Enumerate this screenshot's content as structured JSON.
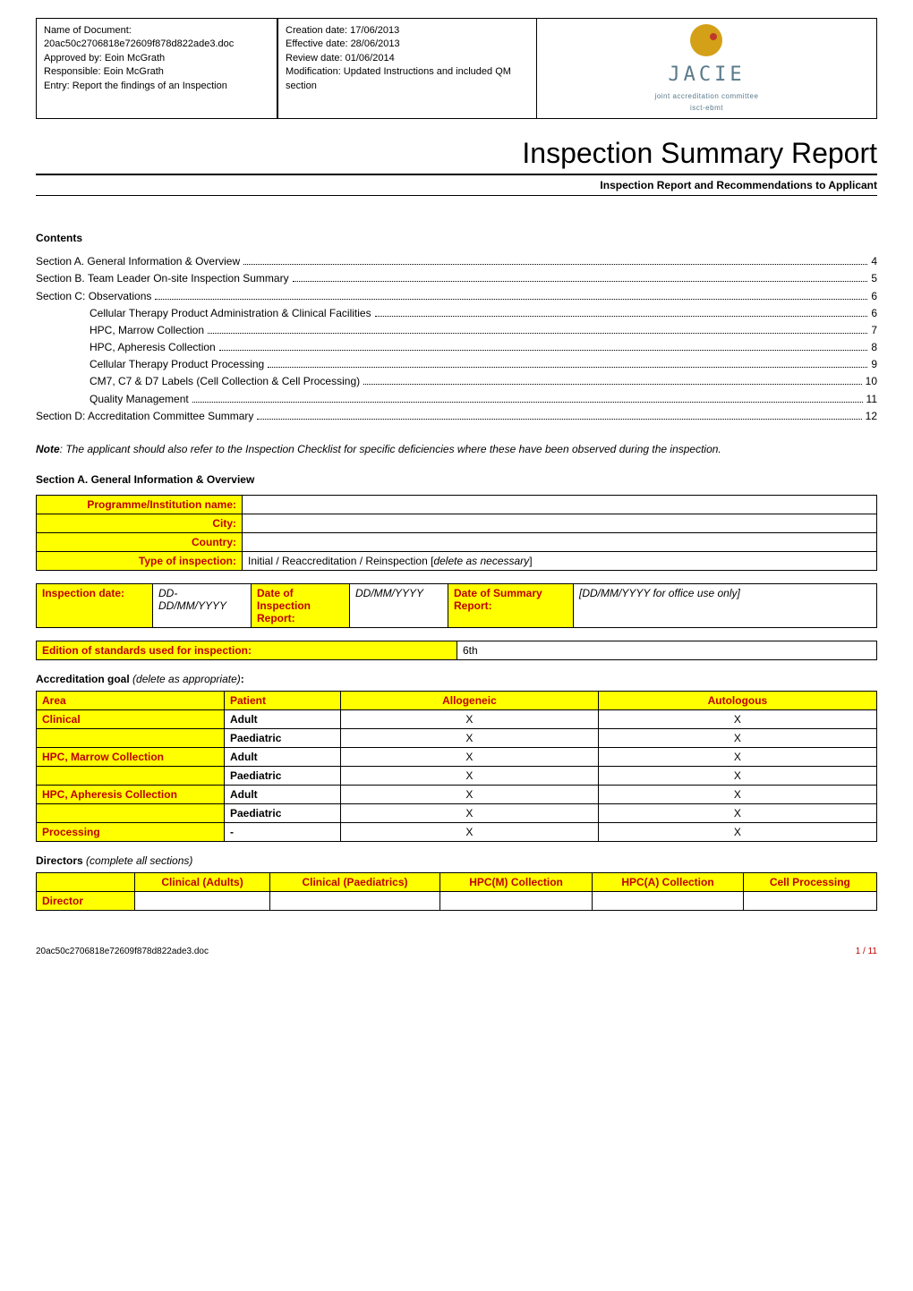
{
  "header": {
    "box1": {
      "l1": "Name of Document:",
      "l2": "20ac50c2706818e72609f878d822ade3.doc",
      "l3": "Approved by: Eoin McGrath",
      "l4": "Responsible: Eoin McGrath",
      "l5": "Entry: Report the findings of an Inspection"
    },
    "box2": {
      "l1": "Creation date: 17/06/2013",
      "l2": "Effective date: 28/06/2013",
      "l3": "Review date: 01/06/2014",
      "l4": "Modification: Updated Instructions and included QM section"
    },
    "logo": {
      "text": "JACIE",
      "sub1": "joint accreditation committee",
      "sub2": "isct-ebmt"
    }
  },
  "title": "Inspection Summary Report",
  "subtitle": "Inspection Report and Recommendations to Applicant",
  "contents_label": "Contents",
  "toc": [
    {
      "label": "Section A. General Information & Overview",
      "page": "4",
      "indent": false
    },
    {
      "label": "Section B. Team Leader On-site Inspection Summary",
      "page": "5",
      "indent": false
    },
    {
      "label": "Section C: Observations",
      "page": "6",
      "indent": false
    },
    {
      "label": "Cellular Therapy Product Administration & Clinical Facilities",
      "page": "6",
      "indent": true
    },
    {
      "label": "HPC, Marrow Collection",
      "page": "7",
      "indent": true
    },
    {
      "label": "HPC, Apheresis Collection",
      "page": "8",
      "indent": true
    },
    {
      "label": "Cellular Therapy Product Processing",
      "page": "9",
      "indent": true
    },
    {
      "label": "CM7, C7 & D7 Labels (Cell Collection & Cell Processing)",
      "page": "10",
      "indent": true
    },
    {
      "label": "Quality Management",
      "page": "11",
      "indent": true
    },
    {
      "label": "Section D: Accreditation Committee Summary",
      "page": "12",
      "indent": false
    }
  ],
  "note_prefix": "Note",
  "note_body": ": The applicant should also refer to the Inspection Checklist for specific deficiencies where these have been observed during the inspection.",
  "sectionA": {
    "heading": "Section A. General Information & Overview",
    "table1": {
      "r1": "Programme/Institution name:",
      "r2": "City:",
      "r3": "Country:",
      "r4": "Type of inspection:",
      "r4v": "Initial / Reaccreditation / Reinspection [delete as necessary]",
      "r4v_ital": "delete as necessary"
    },
    "table2": {
      "c1": "Inspection date:",
      "c1v": "DD-DD/MM/YYYY",
      "c2": "Date of Inspection Report:",
      "c2v": "DD/MM/YYYY",
      "c3": "Date of Summary Report:",
      "c3v": "[DD/MM/YYYY for office use only]"
    },
    "table3": {
      "label": "Edition of standards used for inspection:",
      "value": "6th"
    },
    "acc_goal_label": "Accreditation goal",
    "acc_goal_note": " (delete as appropriate)",
    "acc_table": {
      "headers": [
        "Area",
        "Patient",
        "Allogeneic",
        "Autologous"
      ],
      "rows": [
        [
          "Clinical",
          "Adult",
          "X",
          "X"
        ],
        [
          "",
          "Paediatric",
          "X",
          "X"
        ],
        [
          "HPC, Marrow Collection",
          "Adult",
          "X",
          "X"
        ],
        [
          "",
          "Paediatric",
          "X",
          "X"
        ],
        [
          "HPC, Apheresis Collection",
          "Adult",
          "X",
          "X"
        ],
        [
          "",
          "Paediatric",
          "X",
          "X"
        ],
        [
          "Processing",
          "-",
          "X",
          "X"
        ]
      ]
    },
    "directors_label": "Directors",
    "directors_note": " (complete all sections)",
    "dir_table": {
      "headers": [
        "",
        "Clinical (Adults)",
        "Clinical (Paediatrics)",
        "HPC(M) Collection",
        "HPC(A) Collection",
        "Cell Processing"
      ],
      "row_label": "Director"
    }
  },
  "footer": {
    "left": "20ac50c2706818e72609f878d822ade3.doc",
    "right": "1 / 11"
  },
  "colors": {
    "highlight": "#ffff00",
    "red_text": "#c00000",
    "logo_teal": "#5a7a8a",
    "logo_gold": "#d4a017"
  }
}
